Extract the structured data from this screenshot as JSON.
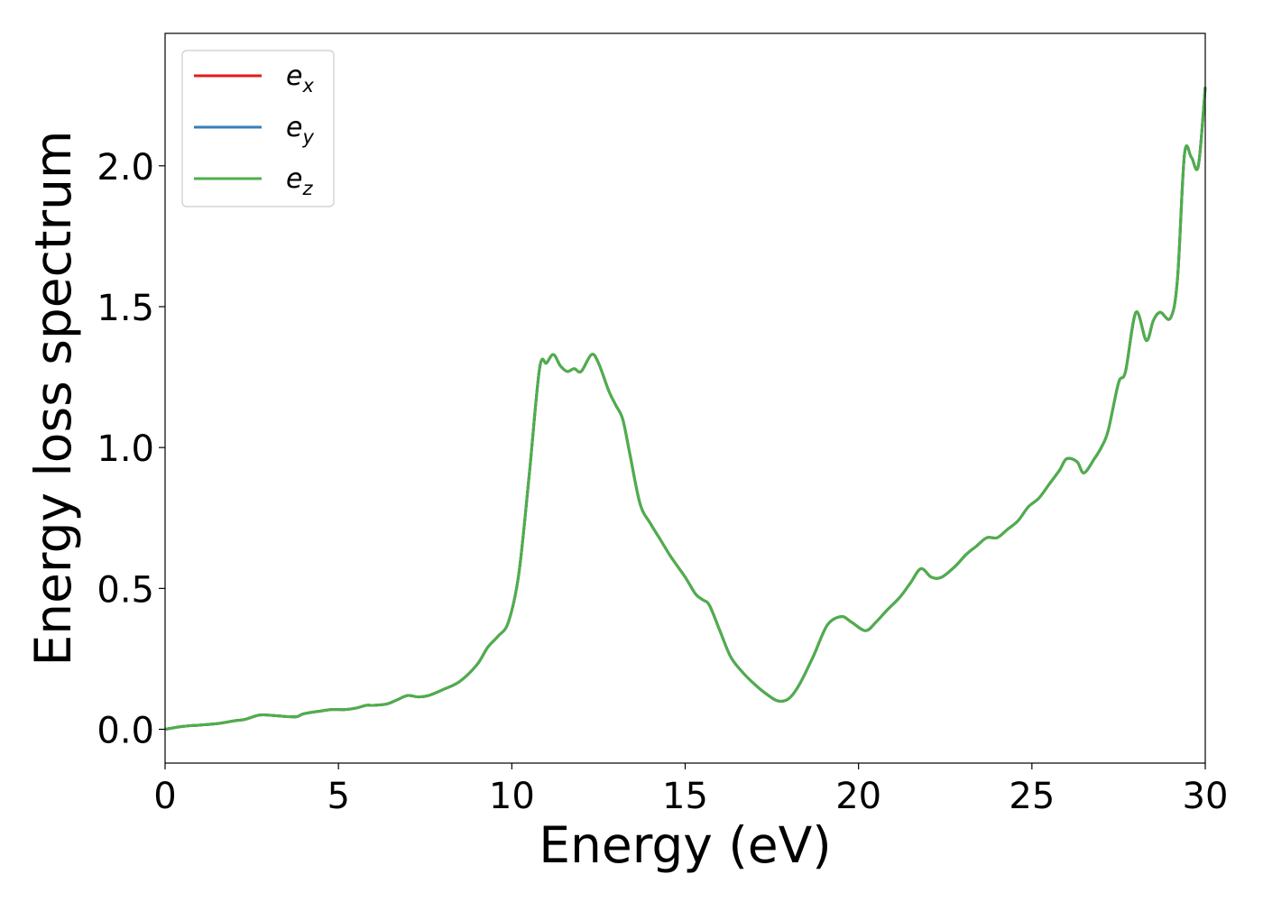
{
  "chart_data": {
    "type": "line",
    "xlabel": "Energy (eV)",
    "ylabel": "Energy loss spectrum",
    "xlim": [
      0,
      30
    ],
    "ylim": [
      -0.12,
      2.47
    ],
    "xticks": [
      0,
      5,
      10,
      15,
      20,
      25,
      30
    ],
    "xtick_labels": [
      "0",
      "5",
      "10",
      "15",
      "20",
      "25",
      "30"
    ],
    "yticks": [
      0.0,
      0.5,
      1.0,
      1.5,
      2.0
    ],
    "ytick_labels": [
      "0.0",
      "0.5",
      "1.0",
      "1.5",
      "2.0"
    ],
    "grid": false,
    "legend_position": "upper-left",
    "legend": [
      {
        "base": "e",
        "sub": "x",
        "color": "#e41a1c"
      },
      {
        "base": "e",
        "sub": "y",
        "color": "#377eb8"
      },
      {
        "base": "e",
        "sub": "z",
        "color": "#4daf4a"
      }
    ],
    "series": [
      {
        "name": "e_x",
        "color": "#e41a1c"
      },
      {
        "name": "e_y",
        "color": "#377eb8"
      },
      {
        "name": "e_z",
        "color": "#4daf4a"
      }
    ],
    "x": [
      0,
      0.5,
      1,
      1.5,
      2,
      2.3,
      2.7,
      3,
      3.5,
      3.8,
      4,
      4.5,
      4.8,
      5.2,
      5.5,
      5.8,
      6,
      6.4,
      6.7,
      7,
      7.3,
      7.6,
      8,
      8.5,
      9,
      9.3,
      9.6,
      9.9,
      10.2,
      10.5,
      10.8,
      11,
      11.2,
      11.4,
      11.6,
      11.8,
      12,
      12.3,
      12.5,
      12.8,
      13,
      13.2,
      13.4,
      13.7,
      14,
      14.3,
      14.6,
      15,
      15.3,
      15.5,
      15.7,
      16,
      16.3,
      16.6,
      17,
      17.4,
      17.7,
      18,
      18.3,
      18.7,
      19.1,
      19.5,
      19.8,
      20.2,
      20.5,
      20.8,
      21.2,
      21.5,
      21.8,
      22.1,
      22.4,
      22.8,
      23.1,
      23.4,
      23.7,
      24,
      24.3,
      24.6,
      24.9,
      25.2,
      25.5,
      25.8,
      26,
      26.3,
      26.5,
      26.8,
      27,
      27.2,
      27.5,
      27.7,
      28,
      28.3,
      28.5,
      28.7,
      29,
      29.2,
      29.4,
      29.6,
      29.8,
      30
    ],
    "y": [
      0.0,
      0.01,
      0.015,
      0.02,
      0.03,
      0.035,
      0.05,
      0.05,
      0.045,
      0.045,
      0.055,
      0.065,
      0.07,
      0.07,
      0.075,
      0.085,
      0.085,
      0.09,
      0.105,
      0.12,
      0.115,
      0.12,
      0.14,
      0.17,
      0.23,
      0.29,
      0.33,
      0.38,
      0.55,
      0.9,
      1.28,
      1.3,
      1.33,
      1.29,
      1.27,
      1.28,
      1.27,
      1.33,
      1.3,
      1.2,
      1.15,
      1.1,
      0.98,
      0.8,
      0.73,
      0.67,
      0.61,
      0.54,
      0.48,
      0.46,
      0.44,
      0.35,
      0.26,
      0.21,
      0.16,
      0.12,
      0.1,
      0.11,
      0.16,
      0.26,
      0.37,
      0.4,
      0.38,
      0.35,
      0.38,
      0.42,
      0.47,
      0.52,
      0.57,
      0.54,
      0.54,
      0.58,
      0.62,
      0.65,
      0.68,
      0.68,
      0.71,
      0.74,
      0.79,
      0.82,
      0.87,
      0.92,
      0.96,
      0.95,
      0.91,
      0.96,
      1.0,
      1.06,
      1.23,
      1.27,
      1.48,
      1.38,
      1.45,
      1.48,
      1.46,
      1.6,
      2.04,
      2.03,
      2.0,
      2.28
    ]
  }
}
